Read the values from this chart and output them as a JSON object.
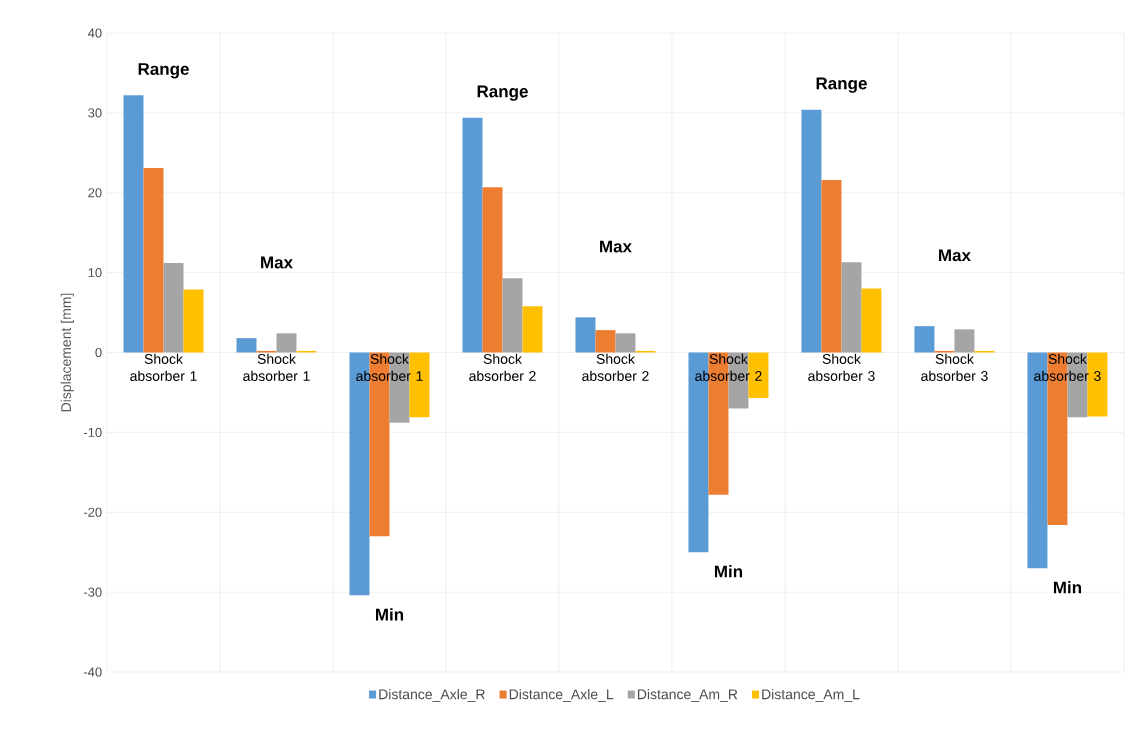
{
  "chart_data": {
    "type": "bar",
    "ylabel": "Displacement [mm]",
    "categories": [
      "Shock absorber 1",
      "Shock absorber 1",
      "Shock absorber 1",
      "Shock absorber 2",
      "Shock absorber 2",
      "Shock absorber 2",
      "Shock absorber 3",
      "Shock absorber 3",
      "Shock absorber 3"
    ],
    "series": [
      {
        "name": "Distance_Axle_R",
        "color": "#5b9bd5",
        "values": [
          32.2,
          1.8,
          -30.4,
          29.4,
          4.4,
          -25.0,
          30.4,
          3.3,
          -27.0
        ]
      },
      {
        "name": "Distance_Axle_L",
        "color": "#ed7d31",
        "values": [
          23.1,
          0.2,
          -23.0,
          20.7,
          2.8,
          -17.8,
          21.6,
          0.2,
          -21.6
        ]
      },
      {
        "name": "Distance_Am_R",
        "color": "#a5a5a5",
        "values": [
          11.2,
          2.4,
          -8.8,
          9.3,
          2.4,
          -7.0,
          11.3,
          2.9,
          -8.1
        ]
      },
      {
        "name": "Distance_Am_L",
        "color": "#ffc000",
        "values": [
          7.9,
          0.2,
          -8.1,
          5.8,
          0.2,
          -5.7,
          8.0,
          0.2,
          -8.0
        ]
      }
    ],
    "annotations": [
      "Range",
      "Max",
      "Min",
      "Range",
      "Max",
      "Min",
      "Range",
      "Max",
      "Min"
    ],
    "ylim": [
      -40,
      40
    ],
    "yticks": [
      -40,
      -30,
      -20,
      -10,
      0,
      10,
      20,
      30,
      40
    ],
    "grid": true,
    "legend": "bottom"
  }
}
